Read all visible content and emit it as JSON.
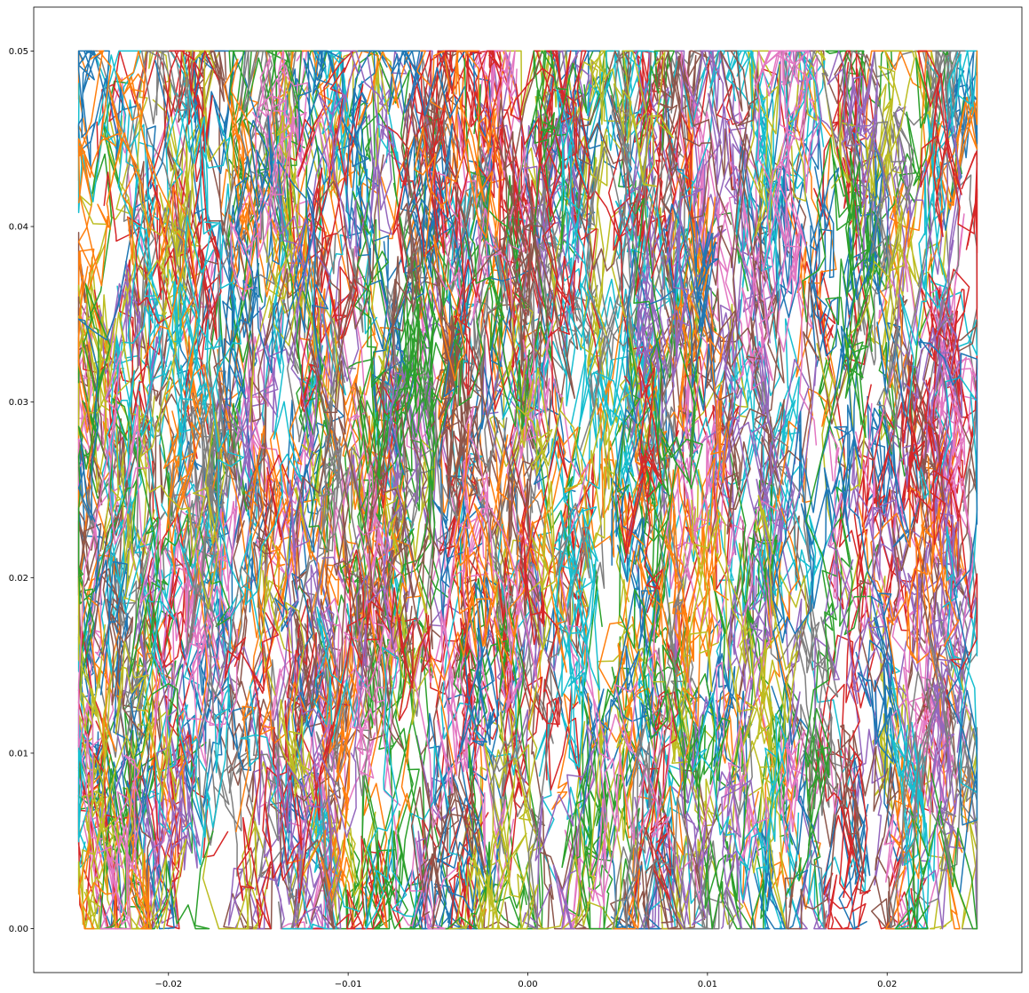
{
  "chart_data": {
    "type": "line",
    "description_series": "dense random-walk trajectories confined to a rectangle",
    "xlim": [
      -0.0275,
      0.0275
    ],
    "ylim": [
      -0.0025,
      0.0525
    ],
    "data_region": {
      "x": [
        -0.025,
        0.025
      ],
      "y": [
        0.0,
        0.05
      ]
    },
    "xticks": [
      -0.02,
      -0.01,
      0.0,
      0.01,
      0.02
    ],
    "xtick_labels": [
      "−0.02",
      "−0.01",
      "0.00",
      "0.01",
      "0.02"
    ],
    "yticks": [
      0.0,
      0.01,
      0.02,
      0.03,
      0.04,
      0.05
    ],
    "ytick_labels": [
      "0.00",
      "0.01",
      "0.02",
      "0.03",
      "0.04",
      "0.05"
    ],
    "grid": false,
    "legend": "none",
    "series_colors": [
      "#1f77b4",
      "#ff7f0e",
      "#2ca02c",
      "#d62728",
      "#9467bd",
      "#8c564b",
      "#e377c2",
      "#7f7f7f",
      "#bcbd22",
      "#17becf"
    ],
    "title": "",
    "xlabel": "",
    "ylabel": ""
  }
}
